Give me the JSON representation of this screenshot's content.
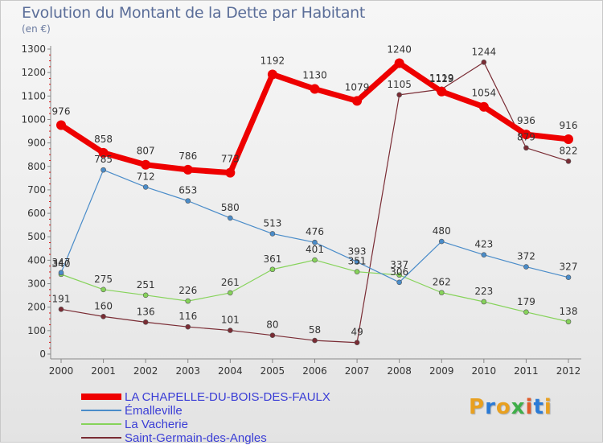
{
  "title": "Evolution du Montant de la Dette par Habitant",
  "unit_label": "(en €)",
  "brand": {
    "text": "Proxiti",
    "letter_colors": [
      "#e8a020",
      "#2a7ad6",
      "#e8a020",
      "#3fae49",
      "#e05a2a",
      "#2a7ad6",
      "#e8a020"
    ]
  },
  "chart_data": {
    "type": "line",
    "title": "Evolution du Montant de la Dette par Habitant",
    "xlabel": "",
    "ylabel": "(en €)",
    "x": [
      "2000",
      "2001",
      "2002",
      "2003",
      "2004",
      "2005",
      "2006",
      "2007",
      "2008",
      "2009",
      "2010",
      "2011",
      "2012"
    ],
    "ylim": [
      0,
      1300
    ],
    "yticks": [
      0,
      100,
      200,
      300,
      400,
      500,
      600,
      700,
      800,
      900,
      1000,
      1100,
      1200,
      1300
    ],
    "grid": false,
    "legend_position": "bottom-left",
    "series": [
      {
        "name": "LA CHAPELLE-DU-BOIS-DES-FAULX",
        "color": "#ee0000",
        "values": [
          976,
          858,
          807,
          786,
          773,
          1192,
          1130,
          1079,
          1240,
          1119,
          1054,
          936,
          916
        ],
        "labels": [
          "976",
          "858",
          "807",
          "786",
          "773",
          "1192",
          "1130",
          "1079",
          "1240",
          "1119",
          "1054",
          "936",
          "916"
        ]
      },
      {
        "name": "Émalleville",
        "color": "#4a8cc9",
        "values": [
          347,
          785,
          712,
          653,
          580,
          513,
          476,
          393,
          306,
          480,
          423,
          372,
          327
        ],
        "labels": [
          "347",
          "785",
          "712",
          "653",
          "580",
          "513",
          "476",
          "393",
          "306",
          "480",
          "423",
          "372",
          "327"
        ]
      },
      {
        "name": "La Vacherie",
        "color": "#86d35a",
        "values": [
          340,
          275,
          251,
          226,
          261,
          361,
          401,
          351,
          337,
          262,
          223,
          179,
          138
        ],
        "labels": [
          "340",
          "275",
          "251",
          "226",
          "261",
          "361",
          "401",
          "351",
          "337",
          "262",
          "223",
          "179",
          "138"
        ]
      },
      {
        "name": "Saint-Germain-des-Angles",
        "color": "#7a2c34",
        "values": [
          191,
          160,
          136,
          116,
          101,
          80,
          58,
          49,
          1105,
          1129,
          1244,
          879,
          822
        ],
        "labels": [
          "191",
          "160",
          "136",
          "116",
          "101",
          "80",
          "58",
          "49",
          "1105",
          "1129",
          "1244",
          "879",
          "822"
        ]
      }
    ]
  }
}
